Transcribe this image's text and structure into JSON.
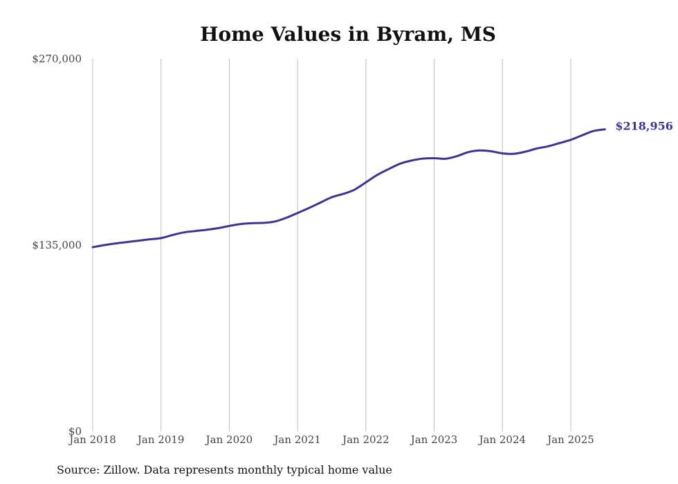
{
  "chart_data": {
    "type": "line",
    "title": "Home Values in Byram, MS",
    "source": "Source: Zillow. Data represents monthly typical home value",
    "xlabel": "",
    "ylabel": "",
    "ylim": [
      0,
      270000
    ],
    "yticks": [
      {
        "value": 0,
        "label": "$0"
      },
      {
        "value": 135000,
        "label": "$135,000"
      },
      {
        "value": 270000,
        "label": "$270,000"
      }
    ],
    "xticks": [
      {
        "value": 2018.0,
        "label": "Jan 2018"
      },
      {
        "value": 2019.0,
        "label": "Jan 2019"
      },
      {
        "value": 2020.0,
        "label": "Jan 2020"
      },
      {
        "value": 2021.0,
        "label": "Jan 2021"
      },
      {
        "value": 2022.0,
        "label": "Jan 2022"
      },
      {
        "value": 2023.0,
        "label": "Jan 2023"
      },
      {
        "value": 2024.0,
        "label": "Jan 2024"
      },
      {
        "value": 2025.0,
        "label": "Jan 2025"
      }
    ],
    "grid": "vertical",
    "colors": {
      "line": "#3b3494"
    },
    "end_label": "$218,956",
    "series": [
      {
        "x": [
          "2018-01",
          "2018-03",
          "2018-05",
          "2018-07",
          "2018-09",
          "2018-11",
          "2019-01",
          "2019-03",
          "2019-05",
          "2019-07",
          "2019-09",
          "2019-11",
          "2020-01",
          "2020-03",
          "2020-05",
          "2020-07",
          "2020-09",
          "2020-11",
          "2021-01",
          "2021-03",
          "2021-05",
          "2021-07",
          "2021-09",
          "2021-11",
          "2022-01",
          "2022-03",
          "2022-05",
          "2022-07",
          "2022-09",
          "2022-11",
          "2023-01",
          "2023-03",
          "2023-05",
          "2023-07",
          "2023-09",
          "2023-11",
          "2024-01",
          "2024-03",
          "2024-05",
          "2024-07",
          "2024-09",
          "2024-11",
          "2025-01",
          "2025-03",
          "2025-05",
          "2025-07"
        ],
        "y": [
          133500,
          135000,
          136200,
          137200,
          138200,
          139200,
          140100,
          142300,
          144200,
          145200,
          146100,
          147300,
          148900,
          150300,
          150900,
          151100,
          152100,
          154800,
          158300,
          161900,
          165800,
          169700,
          172100,
          175200,
          180500,
          185900,
          190100,
          194000,
          196300,
          197700,
          198000,
          197600,
          199500,
          202400,
          203600,
          203000,
          201500,
          201200,
          202700,
          205000,
          206600,
          208900,
          211300,
          214600,
          217700,
          218956
        ]
      }
    ]
  }
}
